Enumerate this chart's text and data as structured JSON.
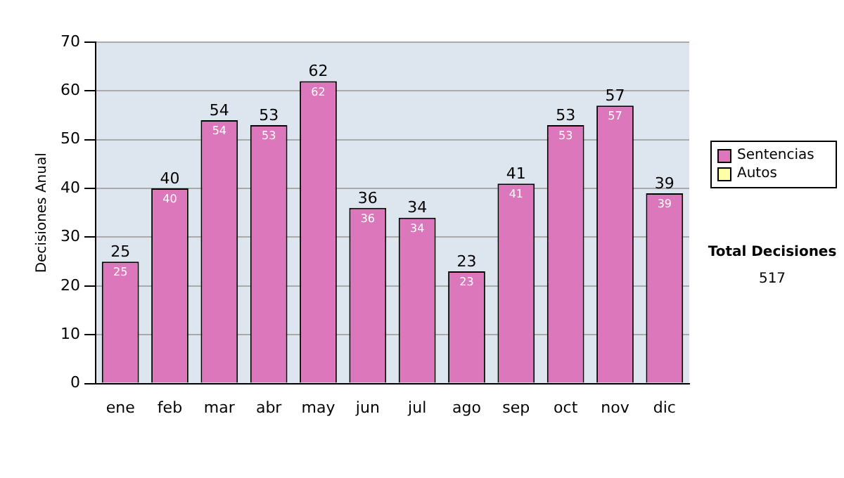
{
  "chart_data": {
    "type": "bar",
    "ylabel": "Decisiones Anual",
    "categories": [
      "ene",
      "feb",
      "mar",
      "abr",
      "may",
      "jun",
      "jul",
      "ago",
      "sep",
      "oct",
      "nov",
      "dic"
    ],
    "series": [
      {
        "name": "Sentencias",
        "color": "#dd77bb",
        "values": [
          25,
          40,
          54,
          53,
          62,
          36,
          34,
          23,
          41,
          53,
          57,
          39
        ]
      },
      {
        "name": "Autos",
        "color": "#ffffaa",
        "values": [
          null,
          null,
          null,
          null,
          null,
          null,
          null,
          null,
          null,
          null,
          null,
          null
        ]
      }
    ],
    "ylim": [
      0,
      70
    ],
    "yticks": [
      0,
      10,
      20,
      30,
      40,
      50,
      60,
      70
    ],
    "grid": "y",
    "legend": "right",
    "data_labels": true,
    "annotations": [
      "Total Decisiones",
      "517",
      {
        "text": "25",
        "x": "ene",
        "y": 25
      },
      {
        "text": "40",
        "x": "feb",
        "y": 40
      },
      {
        "text": "54",
        "x": "mar",
        "y": 54
      },
      {
        "text": "53",
        "x": "abr",
        "y": 53
      },
      {
        "text": "62",
        "x": "may",
        "y": 62
      },
      {
        "text": "36",
        "x": "jun",
        "y": 36
      },
      {
        "text": "34",
        "x": "jul",
        "y": 34
      },
      {
        "text": "23",
        "x": "ago",
        "y": 23
      },
      {
        "text": "41",
        "x": "sep",
        "y": 41
      },
      {
        "text": "53",
        "x": "oct",
        "y": 53
      },
      {
        "text": "57",
        "x": "nov",
        "y": 57
      },
      {
        "text": "39",
        "x": "dic",
        "y": 39
      }
    ]
  }
}
